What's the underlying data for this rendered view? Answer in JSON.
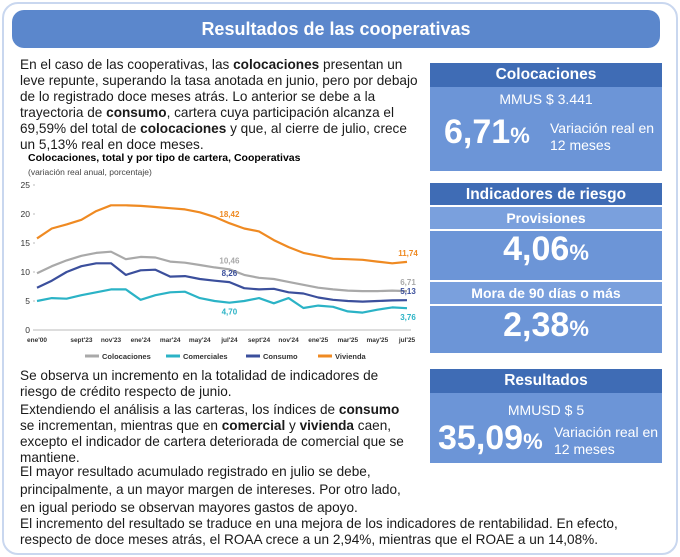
{
  "header": {
    "title": "Resultados de las cooperativas"
  },
  "intro": [
    {
      "text": "En el caso de las cooperativas, las "
    },
    {
      "text": "colocaciones",
      "bold": true
    },
    {
      "text": " presentan un leve repunte, superando la tasa anotada en junio, pero por debajo de lo registrado doce meses atrás. Lo anterior se debe a la trayectoria de "
    },
    {
      "text": "consumo",
      "bold": true
    },
    {
      "text": ", cartera cuya participación alcanza el 69,59% del total de "
    },
    {
      "text": "colocaciones",
      "bold": true
    },
    {
      "text": " y que, al cierre de julio, crece un 5,13% real en doce meses."
    }
  ],
  "chart_data": {
    "type": "line",
    "title": "Colocaciones, total y por tipo de cartera, Cooperativas",
    "subtitle": "(variación real anual, porcentaje)",
    "categories": [
      "ene'00",
      null,
      null,
      "sept'23",
      null,
      "nov'23",
      null,
      "ene'24",
      null,
      "mar'24",
      null,
      "may'24",
      null,
      "jul'24",
      null,
      "sept'24",
      null,
      "nov'24",
      null,
      "ene'25",
      null,
      "mar'25",
      null,
      "may'25",
      null,
      "jul'25"
    ],
    "ylim": [
      0,
      25
    ],
    "yticks": [
      0,
      5,
      10,
      15,
      20,
      25
    ],
    "grid": false,
    "legend": "bottom",
    "series": [
      {
        "name": "Colocaciones",
        "color": "#a9a9a9",
        "values": [
          9.8,
          11,
          12,
          12.8,
          13.3,
          13.5,
          12.2,
          12.6,
          12.5,
          11.8,
          11.6,
          11.2,
          10.8,
          10.46,
          9.5,
          9,
          8.8,
          8.3,
          7.8,
          7.3,
          7,
          6.8,
          6.7,
          6.7,
          6.8,
          6.71
        ],
        "value_labels": [
          null,
          null,
          null,
          null,
          null,
          null,
          null,
          null,
          null,
          null,
          null,
          null,
          null,
          "10,46",
          null,
          null,
          null,
          null,
          null,
          null,
          null,
          null,
          null,
          null,
          null,
          "6,71"
        ]
      },
      {
        "name": "Comerciales",
        "color": "#2bb3c6",
        "values": [
          5,
          5.5,
          5.4,
          6,
          6.5,
          7,
          7,
          5.2,
          6,
          6.5,
          6.6,
          5.5,
          5,
          4.7,
          5,
          5.5,
          4.6,
          5.5,
          3.8,
          4.2,
          4,
          3.2,
          3,
          3.5,
          3.9,
          3.76
        ],
        "value_labels": [
          null,
          null,
          null,
          null,
          null,
          null,
          null,
          null,
          null,
          null,
          null,
          null,
          null,
          "4,70",
          null,
          null,
          null,
          null,
          null,
          null,
          null,
          null,
          null,
          null,
          null,
          "3,76"
        ]
      },
      {
        "name": "Consumo",
        "color": "#3b4f9c",
        "values": [
          7.3,
          8.5,
          10,
          11,
          11.5,
          11.5,
          9.5,
          10.3,
          10.4,
          9.2,
          9.3,
          8.8,
          8.5,
          8.26,
          7.2,
          7,
          7.1,
          6.5,
          6.3,
          5.6,
          5.2,
          5,
          4.9,
          5,
          5.1,
          5.13
        ],
        "value_labels": [
          null,
          null,
          null,
          null,
          null,
          null,
          null,
          null,
          null,
          null,
          null,
          null,
          null,
          "8,26",
          null,
          null,
          null,
          null,
          null,
          null,
          null,
          null,
          null,
          null,
          null,
          "5,13"
        ]
      },
      {
        "name": "Vivienda",
        "color": "#ef8a22",
        "values": [
          15.8,
          17.5,
          18.2,
          19,
          20.5,
          21.5,
          21.5,
          21.4,
          21.2,
          21,
          20.8,
          20.3,
          19.5,
          18.42,
          17.5,
          17,
          15.5,
          14.3,
          13.3,
          12.8,
          12.3,
          12.2,
          12.1,
          11.8,
          11.5,
          11.74
        ],
        "value_labels": [
          null,
          null,
          null,
          null,
          null,
          null,
          null,
          null,
          null,
          null,
          null,
          null,
          null,
          "18,42",
          null,
          null,
          null,
          null,
          null,
          null,
          null,
          null,
          null,
          null,
          null,
          "11,74"
        ]
      }
    ]
  },
  "paragraphs": [
    [
      {
        "text": "Se observa un incremento en la totalidad de indicadores de riesgo de crédito respecto de junio."
      }
    ],
    [
      {
        "text": "Extendiendo el análisis a las carteras, los índices de "
      },
      {
        "text": "consumo",
        "bold": true
      },
      {
        "text": " se incrementan, mientras que en "
      },
      {
        "text": "comercial",
        "bold": true
      },
      {
        "text": " y "
      },
      {
        "text": "vivienda",
        "bold": true
      },
      {
        "text": " caen, excepto el indicador de cartera deteriorada de comercial que se mantiene."
      }
    ],
    [
      {
        "text": "El mayor resultado acumulado registrado en julio se debe, principalmente, a un mayor margen de intereses. Por otro lado, en igual periodo se observan mayores gastos de apoyo."
      }
    ],
    [
      {
        "text": "El incremento del resultado se traduce en una mejora de los indicadores de rentabilidad. En efecto, respecto de doce meses atrás, el ROAA crece a un 2,94%, mientras que el ROAE a un 14,08%."
      }
    ]
  ],
  "panels": {
    "colocaciones": {
      "title": "Colocaciones",
      "amount": "MMUS $ 3.441",
      "figure": "6,71",
      "unit": "%",
      "note": "Variación real en 12 meses"
    },
    "riesgo": {
      "title": "Indicadores de riesgo",
      "items": [
        {
          "label": "Provisiones",
          "figure": "4,06",
          "unit": "%"
        },
        {
          "label": "Mora de 90 días o más",
          "figure": "2,38",
          "unit": "%"
        }
      ]
    },
    "resultados": {
      "title": "Resultados",
      "amount": "MMUSD $ 5",
      "figure": "35,09",
      "unit": "%",
      "note": "Variación real en 12 meses"
    }
  }
}
